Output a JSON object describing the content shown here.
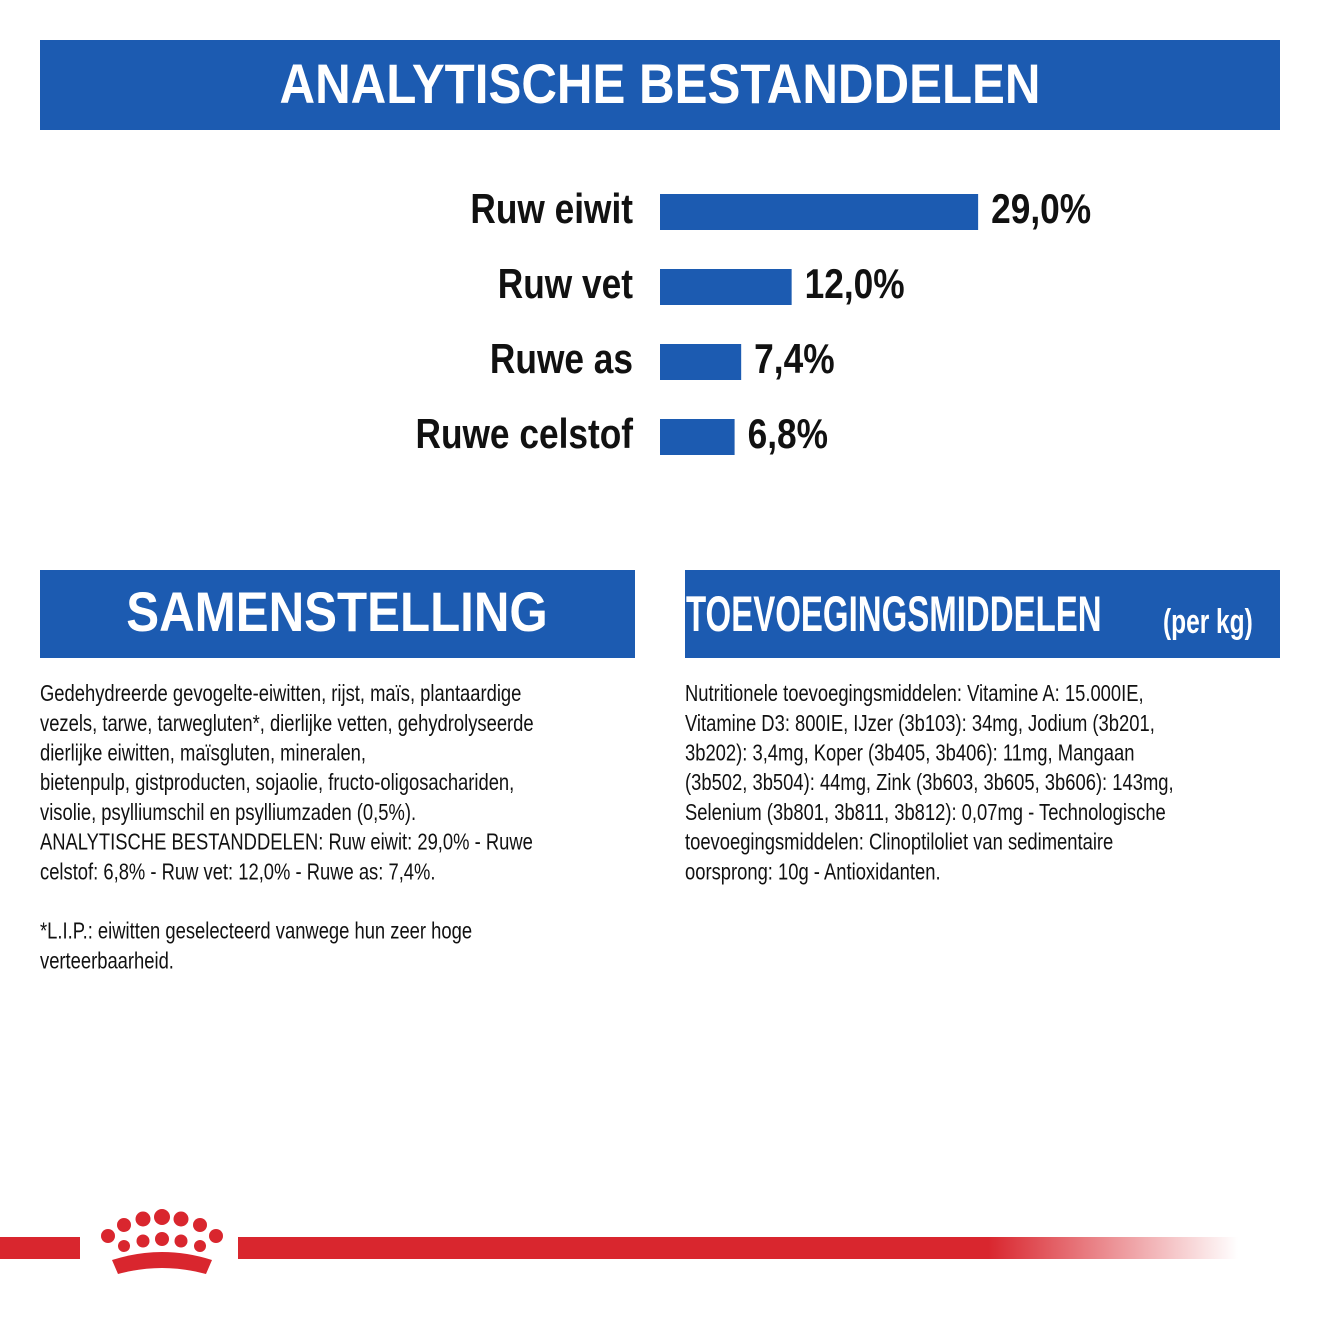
{
  "header": {
    "title": "ANALYTISCHE BESTANDDELEN"
  },
  "chart_data": {
    "type": "bar",
    "orientation": "horizontal",
    "color": "#1c5bb1",
    "categories": [
      "Ruw eiwit",
      "Ruw vet",
      "Ruwe as",
      "Ruwe celstof"
    ],
    "values": [
      29.0,
      12.0,
      7.4,
      6.8
    ],
    "value_labels": [
      "29,0%",
      "12,0%",
      "7,4%",
      "6,8%"
    ]
  },
  "samenstelling": {
    "title": "SAMENSTELLING",
    "paragraphs": [
      [
        "Gedehydreerde gevogelte-eiwitten, rijst, maïs, plantaardige",
        "vezels, tarwe, tarwegluten*, dierlijke vetten, gehydrolyseerde",
        "dierlijke eiwitten, maïsgluten, mineralen,",
        "bietenpulp, gistproducten, sojaolie, fructo-oligosachariden,",
        "visolie, psylliumschil en psylliumzaden (0,5%).",
        "ANALYTISCHE BESTANDDELEN: Ruw eiwit: 29,0% - Ruwe",
        "celstof: 6,8% - Ruw vet: 12,0% - Ruwe as: 7,4%."
      ],
      [
        "*L.I.P.: eiwitten geselecteerd vanwege hun zeer hoge",
        "verteerbaarheid."
      ]
    ]
  },
  "toevoegingsmiddelen": {
    "title": "TOEVOEGINGSMIDDELEN",
    "subtitle": "(per kg)",
    "lines": [
      "Nutritionele toevoegingsmiddelen: Vitamine A: 15.000IE,",
      "Vitamine D3: 800IE, IJzer (3b103): 34mg, Jodium (3b201,",
      "3b202): 3,4mg, Koper (3b405, 3b406): 11mg, Mangaan",
      "(3b502, 3b504): 44mg, Zink (3b603, 3b605, 3b606): 143mg,",
      "Selenium (3b801, 3b811, 3b812): 0,07mg - Technologische",
      "toevoegingsmiddelen: Clinoptiloliet van sedimentaire",
      "oorsprong: 10g - Antioxidanten."
    ]
  }
}
